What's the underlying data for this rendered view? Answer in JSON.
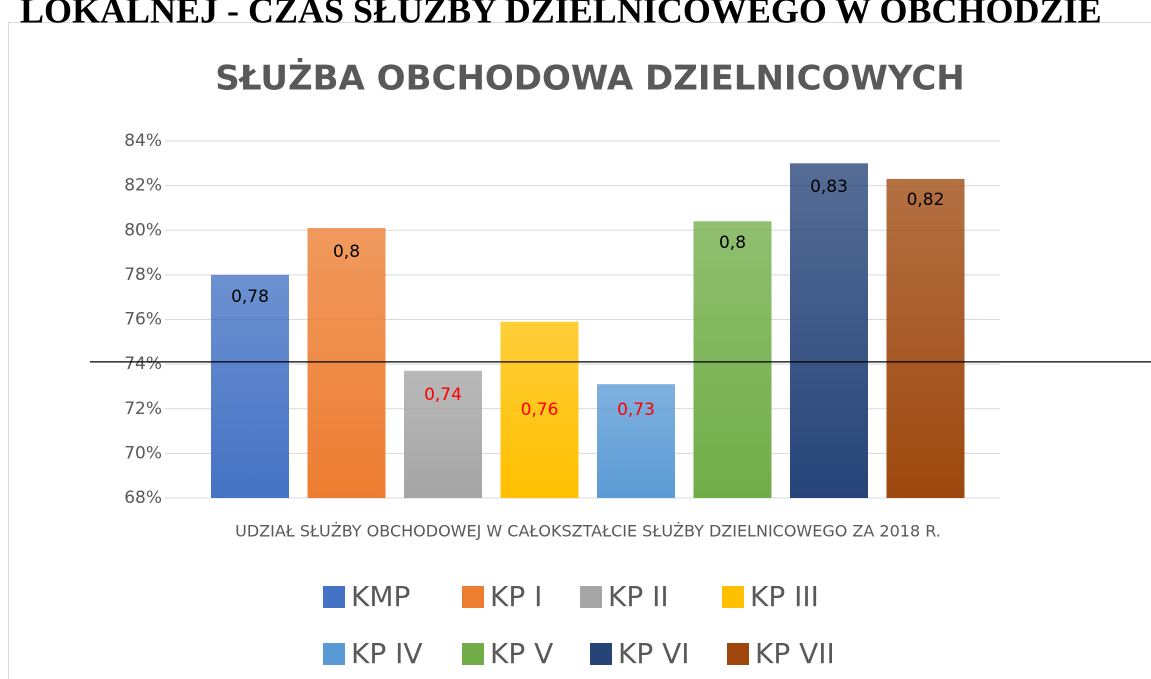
{
  "page_heading": "LOKALNEJ - CZAS SŁUŻBY DZIELNICOWEGO W OBCHODZIE",
  "chart_data": {
    "type": "bar",
    "title": "SŁUŻBA OBCHODOWA DZIELNICOWYCH",
    "x_label": "UDZIAŁ SŁUŻBY OBCHODOWEJ W CAŁOKSZTAŁCIE SŁUŻBY DZIELNICOWEGO ZA 2018 R.",
    "categories": [
      "KMP",
      "KP I",
      "KP II",
      "KP III",
      "KP IV",
      "KP V",
      "KP VI",
      "KP VII"
    ],
    "values": [
      78,
      80.1,
      73.7,
      75.9,
      73.1,
      80.4,
      83,
      82.3
    ],
    "value_labels": [
      "0,78",
      "0,8",
      "0,74",
      "0,76",
      "0,73",
      "0,8",
      "0,83",
      "0,82"
    ],
    "value_label_colors": [
      "#000000",
      "#000000",
      "#ff0000",
      "#ff0000",
      "#ff0000",
      "#000000",
      "#000000",
      "#000000"
    ],
    "colors": [
      "#4472c4",
      "#ed7d31",
      "#a5a5a5",
      "#ffc000",
      "#5b9bd5",
      "#70ad47",
      "#264478",
      "#9e480e"
    ],
    "ylim": [
      68,
      84
    ],
    "yticks": [
      {
        "value": 68,
        "label": "68%"
      },
      {
        "value": 70,
        "label": "70%"
      },
      {
        "value": 72,
        "label": "72%"
      },
      {
        "value": 74,
        "label": "74%"
      },
      {
        "value": 76,
        "label": "76%"
      },
      {
        "value": 78,
        "label": "78%"
      },
      {
        "value": 80,
        "label": "80%"
      },
      {
        "value": 82,
        "label": "82%"
      },
      {
        "value": 84,
        "label": "84%"
      }
    ],
    "grid": true,
    "reference_line": {
      "value": 74.1,
      "color": "#000000"
    },
    "legend": "bottom"
  }
}
